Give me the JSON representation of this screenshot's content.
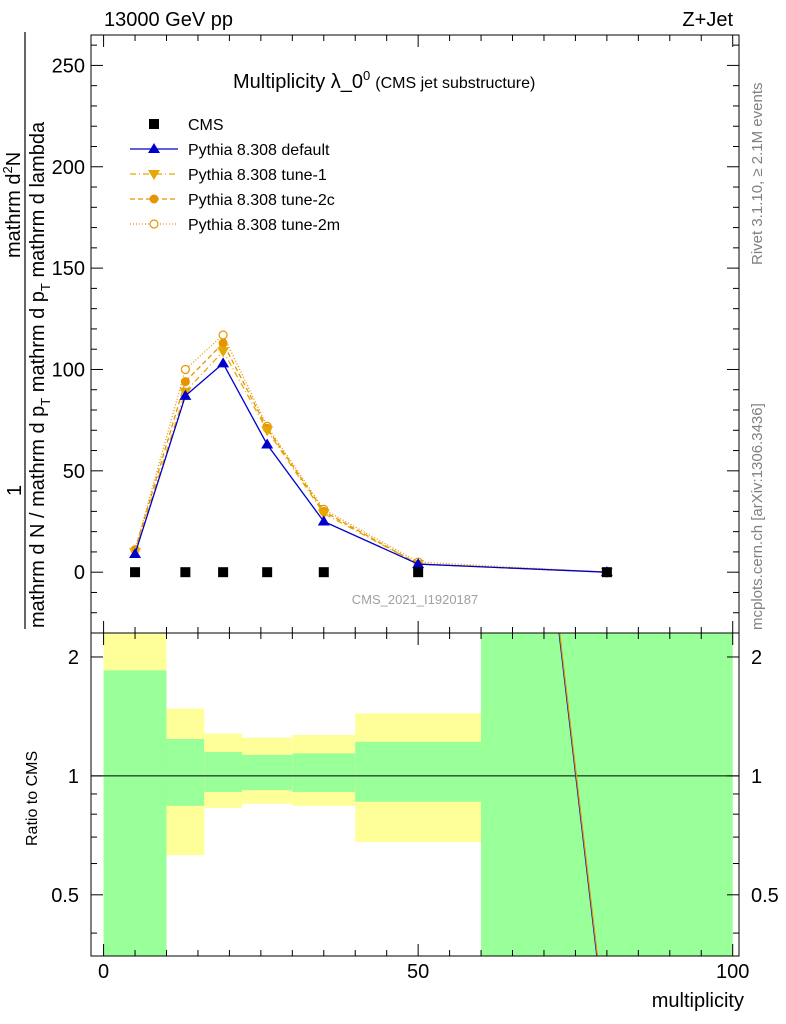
{
  "header": {
    "left": "13000 GeV pp",
    "right": "Z+Jet"
  },
  "side_labels": {
    "rivet": "Rivet 3.1.10, ≥ 2.1M events",
    "mcplots": "mcplots.cern.ch [arXiv:1306.3436]"
  },
  "chart_data": [
    {
      "type": "scatter",
      "title": "Multiplicity λ_0",
      "title_sup": "0",
      "subtitle": "(CMS jet substructure)",
      "ylabel_num": "1",
      "ylabel_num_top": "mathrm d",
      "ylabel_num_sup": "2",
      "ylabel_num_N": "N",
      "ylabel_den": "mathrm d N / mathrm d p",
      "ylabel_den_sub": "T",
      "ylabel_den_rest": " mathrm d p",
      "ylabel_den_rest_sub": "T",
      "ylabel_den_end": " mathrm d lambda",
      "watermark": "CMS_2021_I1920187",
      "ylim": [
        -30,
        265
      ],
      "xlim": [
        -2,
        101
      ],
      "y_ticks": [
        0,
        50,
        100,
        150,
        200,
        250
      ],
      "legend_position": "top-left",
      "series": [
        {
          "name": "CMS",
          "color": "#000000",
          "marker": "square",
          "x": [
            5,
            13,
            19,
            26,
            35,
            50,
            80
          ],
          "y": [
            0,
            0,
            0,
            0,
            0,
            0,
            0
          ]
        },
        {
          "name": "Pythia 8.308 default",
          "color": "#0000cc",
          "marker": "triangle-up",
          "line": "solid",
          "x": [
            5,
            13,
            19,
            26,
            35,
            50,
            80
          ],
          "y": [
            9,
            87,
            103,
            63,
            25,
            4,
            0
          ]
        },
        {
          "name": "Pythia 8.308 tune-1",
          "color": "#e6a800",
          "marker": "triangle-down",
          "line": "dashdot",
          "x": [
            5,
            13,
            19,
            26,
            35,
            50,
            80
          ],
          "y": [
            10,
            89,
            109,
            70,
            29,
            4,
            0
          ]
        },
        {
          "name": "Pythia 8.308 tune-2c",
          "color": "#e69500",
          "marker": "circle",
          "line": "dashed",
          "x": [
            5,
            13,
            19,
            26,
            35,
            50,
            80
          ],
          "y": [
            11,
            94,
            113,
            71,
            30,
            4,
            0
          ]
        },
        {
          "name": "Pythia 8.308 tune-2m",
          "color": "#e69500",
          "marker": "circle-open",
          "line": "dotted",
          "x": [
            5,
            13,
            19,
            26,
            35,
            50,
            80
          ],
          "y": [
            11,
            100,
            117,
            72,
            31,
            5,
            0
          ]
        }
      ]
    },
    {
      "type": "line",
      "ylabel": "Ratio to CMS",
      "xlabel": "multiplicity",
      "xlim": [
        -2,
        101
      ],
      "ylim": [
        0.35,
        2.3
      ],
      "y_ticks": [
        0.5,
        1,
        2
      ],
      "y_tick_labels": [
        "0.5",
        "1",
        "2"
      ],
      "x_ticks": [
        0,
        50,
        100
      ],
      "x_tick_labels": [
        "0",
        "50",
        "100"
      ],
      "bands": [
        {
          "x0": 0,
          "x1": 10,
          "yellow": [
            0.35,
            2.3
          ],
          "green": [
            0.35,
            1.85
          ]
        },
        {
          "x0": 10,
          "x1": 16,
          "yellow": [
            0.63,
            1.48
          ],
          "green": [
            0.84,
            1.24
          ]
        },
        {
          "x0": 16,
          "x1": 22,
          "yellow": [
            0.83,
            1.28
          ],
          "green": [
            0.91,
            1.15
          ]
        },
        {
          "x0": 22,
          "x1": 30,
          "yellow": [
            0.85,
            1.25
          ],
          "green": [
            0.92,
            1.13
          ]
        },
        {
          "x0": 30,
          "x1": 40,
          "yellow": [
            0.84,
            1.27
          ],
          "green": [
            0.91,
            1.14
          ]
        },
        {
          "x0": 40,
          "x1": 60,
          "yellow": [
            0.68,
            1.44
          ],
          "green": [
            0.86,
            1.22
          ]
        },
        {
          "x0": 60,
          "x1": 100,
          "yellow": [
            0.35,
            2.3
          ],
          "green": [
            0.35,
            2.3
          ]
        }
      ],
      "lines": [
        {
          "name": "Pythia 8.308 default",
          "color": "#0000cc",
          "x": [
            72.4,
            78.4
          ],
          "y": [
            2.3,
            0.35
          ]
        },
        {
          "name": "Pythia 8.308 tune-2c",
          "color": "#e69500",
          "x": [
            72.5,
            78.5
          ],
          "y": [
            2.3,
            0.35
          ]
        }
      ]
    }
  ]
}
